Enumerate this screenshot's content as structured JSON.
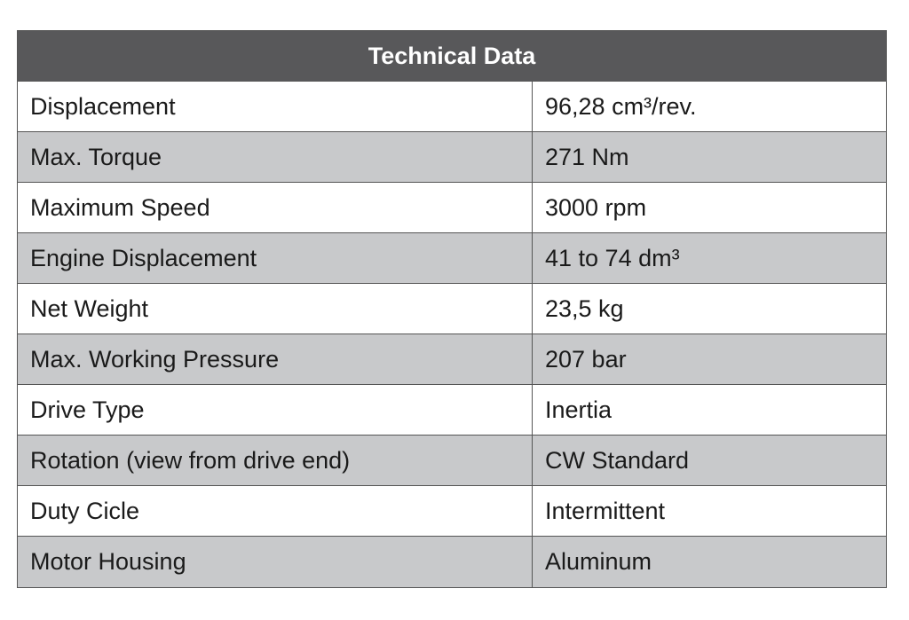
{
  "table": {
    "title": "Technical Data",
    "rows": [
      [
        "Displacement",
        "96,28 cm³/rev."
      ],
      [
        "Max. Torque",
        "271 Nm"
      ],
      [
        "Maximum Speed",
        "3000 rpm"
      ],
      [
        "Engine Displacement",
        "41 to 74 dm³"
      ],
      [
        "Net Weight",
        "23,5 kg"
      ],
      [
        "Max. Working Pressure",
        "207 bar"
      ],
      [
        "Drive Type",
        "Inertia"
      ],
      [
        "Rotation (view from drive end)",
        "CW Standard"
      ],
      [
        "Duty Cicle",
        "Intermittent"
      ],
      [
        "Motor Housing",
        "Aluminum"
      ]
    ]
  }
}
